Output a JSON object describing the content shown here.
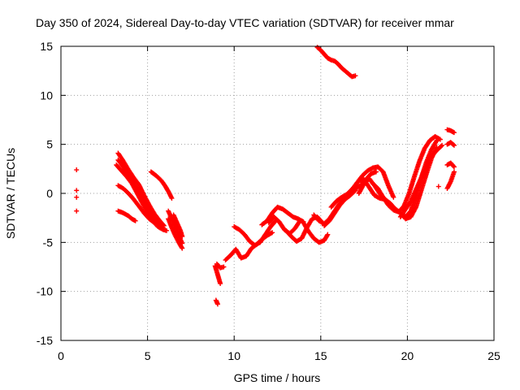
{
  "chart_data": {
    "type": "scatter",
    "title": "Day 350 of 2024, Sidereal Day-to-day VTEC variation (SDTVAR) for receiver mmar",
    "xlabel": "GPS time / hours",
    "ylabel": "SDTVAR / TECUs",
    "xlim": [
      0,
      25
    ],
    "ylim": [
      -15,
      15
    ],
    "xticks": [
      0,
      5,
      10,
      15,
      20,
      25
    ],
    "yticks": [
      -15,
      -10,
      -5,
      0,
      5,
      10,
      15
    ],
    "xtick_labels": [
      "0",
      "5",
      "10",
      "15",
      "20",
      "25"
    ],
    "ytick_labels": [
      "-15",
      "-10",
      "-5",
      "0",
      "5",
      "10",
      "15"
    ],
    "grid": true,
    "marker_color": "#ff0000",
    "marker": "plus",
    "series": [
      {
        "name": "t1",
        "x": [
          0.9,
          0.9,
          0.9,
          0.9
        ],
        "y": [
          2.4,
          0.3,
          -0.4,
          -1.8
        ]
      },
      {
        "name": "t2",
        "x": [
          3.3,
          3.6,
          3.9,
          4.2,
          4.5,
          4.8,
          5.1,
          5.4,
          5.7,
          5.95
        ],
        "y": [
          4.1,
          3.3,
          2.4,
          1.6,
          0.9,
          -0.2,
          -1.2,
          -2.1,
          -2.8,
          -3.3
        ]
      },
      {
        "name": "t3",
        "x": [
          3.3,
          3.6,
          3.9,
          4.2,
          4.5,
          4.8,
          5.1,
          5.4,
          5.7,
          5.9
        ],
        "y": [
          3.4,
          2.7,
          1.9,
          1.1,
          0.2,
          -0.8,
          -1.8,
          -2.7,
          -3.2,
          -3.5
        ]
      },
      {
        "name": "t4",
        "x": [
          3.2,
          3.5,
          3.8,
          4.1,
          4.4,
          4.7,
          5.0,
          5.3,
          5.6,
          5.9,
          6.1
        ],
        "y": [
          2.9,
          2.3,
          1.7,
          1.0,
          0.0,
          -1.0,
          -2.0,
          -2.8,
          -3.4,
          -3.7,
          -3.8
        ]
      },
      {
        "name": "t5",
        "x": [
          3.3,
          3.6,
          3.9,
          4.2,
          4.5,
          4.8,
          5.1,
          5.4,
          5.7
        ],
        "y": [
          0.8,
          0.5,
          0.0,
          -0.6,
          -1.3,
          -2.0,
          -2.6,
          -3.0,
          -3.2
        ]
      },
      {
        "name": "t6",
        "x": [
          3.3,
          3.6,
          3.9,
          4.1,
          4.3
        ],
        "y": [
          -1.8,
          -2.0,
          -2.3,
          -2.6,
          -2.8
        ]
      },
      {
        "name": "t7",
        "x": [
          5.2,
          5.5,
          5.8,
          6.0,
          6.2,
          6.4
        ],
        "y": [
          2.2,
          1.8,
          1.3,
          0.8,
          0.2,
          -0.5
        ]
      },
      {
        "name": "t8",
        "x": [
          6.2,
          6.4,
          6.6,
          6.8,
          7.0
        ],
        "y": [
          -1.8,
          -2.6,
          -3.4,
          -4.3,
          -5.1
        ]
      },
      {
        "name": "t9",
        "x": [
          6.2,
          6.4,
          6.6,
          6.8,
          7.0
        ],
        "y": [
          -2.6,
          -3.5,
          -4.3,
          -5.0,
          -5.6
        ]
      },
      {
        "name": "t10",
        "x": [
          6.5,
          6.7,
          6.9,
          7.0
        ],
        "y": [
          -2.2,
          -3.0,
          -3.8,
          -4.4
        ]
      },
      {
        "name": "t11",
        "x": [
          8.9,
          9.05,
          9.2
        ],
        "y": [
          -7.4,
          -8.3,
          -9.2
        ]
      },
      {
        "name": "t12",
        "x": [
          9.0,
          9.2,
          9.4
        ],
        "y": [
          -7.2,
          -7.6,
          -7.5
        ]
      },
      {
        "name": "t13",
        "x": [
          8.95,
          9.05
        ],
        "y": [
          -10.9,
          -11.3
        ]
      },
      {
        "name": "t14",
        "x": [
          9.5,
          9.8,
          10.1,
          10.4,
          10.7,
          11.0,
          11.3,
          11.6,
          11.9,
          12.2
        ],
        "y": [
          -6.8,
          -6.3,
          -5.7,
          -6.6,
          -6.4,
          -5.6,
          -5.2,
          -4.7,
          -4.3,
          -4.0
        ]
      },
      {
        "name": "t15",
        "x": [
          10.0,
          10.3,
          10.6,
          10.9,
          11.2,
          11.5,
          11.8,
          12.1,
          12.4
        ],
        "y": [
          -3.4,
          -3.7,
          -4.2,
          -4.9,
          -5.3,
          -5.0,
          -4.2,
          -3.4,
          -2.8
        ]
      },
      {
        "name": "t16",
        "x": [
          11.6,
          11.9,
          12.2,
          12.5,
          12.8,
          13.1,
          13.4,
          13.7,
          14.0
        ],
        "y": [
          -3.2,
          -2.8,
          -2.0,
          -1.4,
          -1.6,
          -2.0,
          -2.4,
          -2.6,
          -2.9
        ]
      },
      {
        "name": "t17",
        "x": [
          12.0,
          12.3,
          12.6,
          12.9,
          13.2,
          13.5,
          13.8
        ],
        "y": [
          -3.0,
          -2.4,
          -2.9,
          -3.7,
          -4.1,
          -3.6,
          -2.8
        ]
      },
      {
        "name": "t18",
        "x": [
          13.0,
          13.3,
          13.6,
          13.9,
          14.2,
          14.5,
          14.8,
          15.1
        ],
        "y": [
          -3.8,
          -4.4,
          -4.9,
          -4.6,
          -3.5,
          -2.6,
          -2.4,
          -3.0
        ]
      },
      {
        "name": "t19",
        "x": [
          14.0,
          14.3,
          14.6,
          14.9,
          15.2,
          15.4
        ],
        "y": [
          -3.0,
          -3.9,
          -4.6,
          -5.0,
          -4.8,
          -4.2
        ]
      },
      {
        "name": "t20",
        "x": [
          14.6,
          14.9,
          15.2,
          15.5,
          15.8,
          16.1,
          16.4,
          16.7,
          17.0
        ],
        "y": [
          -2.2,
          -2.8,
          -3.1,
          -2.6,
          -1.8,
          -1.0,
          -0.6,
          -0.2,
          0.3
        ]
      },
      {
        "name": "t21",
        "x": [
          15.2,
          15.5,
          15.8,
          16.1,
          16.4,
          16.7,
          17.0,
          17.3,
          17.6,
          17.9,
          18.2
        ],
        "y": [
          -3.3,
          -2.8,
          -2.0,
          -1.2,
          -0.6,
          0.0,
          0.5,
          0.8,
          1.4,
          2.0,
          2.2
        ]
      },
      {
        "name": "t22",
        "x": [
          15.6,
          15.9,
          16.2,
          16.5,
          16.8,
          17.1,
          17.4,
          17.7,
          18.0,
          18.3,
          18.6,
          18.9,
          19.2
        ],
        "y": [
          -1.4,
          -0.8,
          -0.4,
          -0.1,
          0.4,
          1.1,
          1.8,
          2.3,
          2.6,
          2.7,
          2.2,
          0.8,
          -0.4
        ]
      },
      {
        "name": "t23",
        "x": [
          16.6,
          16.9,
          17.2,
          17.5,
          17.8,
          18.1,
          18.4,
          18.7,
          19.0,
          19.3,
          19.6,
          19.9,
          20.2,
          20.5,
          20.8,
          21.1,
          21.4,
          21.7
        ],
        "y": [
          0.0,
          0.6,
          1.3,
          1.4,
          0.6,
          -0.2,
          -0.5,
          -0.6,
          -1.0,
          -1.6,
          -2.0,
          -2.4,
          -1.8,
          -0.2,
          1.6,
          3.2,
          4.5,
          5.4
        ]
      },
      {
        "name": "t24",
        "x": [
          17.2,
          17.5,
          17.8,
          18.1,
          18.4,
          18.7,
          19.0,
          19.3,
          19.6,
          19.9,
          20.2,
          20.5,
          20.8,
          21.1,
          21.4,
          21.7
        ],
        "y": [
          0.0,
          1.0,
          1.5,
          0.8,
          0.0,
          -0.6,
          -1.2,
          -1.6,
          -2.0,
          -2.6,
          -2.4,
          -1.4,
          0.3,
          2.0,
          3.6,
          4.7
        ]
      },
      {
        "name": "t25",
        "x": [
          18.0,
          18.3,
          18.6,
          18.9,
          19.2,
          19.5,
          19.8,
          20.1,
          20.4,
          20.7,
          21.0,
          21.3,
          21.6,
          21.9
        ],
        "y": [
          1.0,
          0.5,
          -0.4,
          -1.2,
          -1.7,
          -1.9,
          -1.3,
          0.0,
          1.7,
          3.3,
          4.6,
          5.4,
          5.8,
          5.5
        ]
      },
      {
        "name": "t26",
        "x": [
          19.6,
          19.9,
          20.2,
          20.5,
          20.8,
          21.1,
          21.4,
          21.7,
          22.0
        ],
        "y": [
          -2.4,
          -1.6,
          -0.8,
          0.4,
          1.6,
          2.8,
          3.8,
          4.4,
          4.9
        ]
      },
      {
        "name": "t27",
        "x": [
          22.3,
          22.5,
          22.7
        ],
        "y": [
          6.5,
          6.4,
          6.2
        ]
      },
      {
        "name": "t28",
        "x": [
          22.3,
          22.5,
          22.7
        ],
        "y": [
          5.0,
          5.2,
          4.9
        ]
      },
      {
        "name": "t29",
        "x": [
          22.3,
          22.5,
          22.7
        ],
        "y": [
          2.9,
          3.1,
          2.7
        ]
      },
      {
        "name": "t30",
        "x": [
          22.3,
          22.5,
          22.7
        ],
        "y": [
          0.5,
          1.2,
          2.2
        ]
      },
      {
        "name": "t31",
        "x": [
          21.8
        ],
        "y": [
          0.7
        ]
      },
      {
        "name": "t32",
        "x": [
          14.8,
          15.0,
          15.2,
          15.4,
          15.6,
          15.8,
          16.0,
          16.2,
          16.4,
          16.6,
          16.8,
          17.0
        ],
        "y": [
          14.9,
          14.6,
          14.2,
          13.8,
          13.6,
          13.5,
          13.2,
          12.8,
          12.5,
          12.2,
          11.9,
          12.0
        ]
      }
    ]
  }
}
